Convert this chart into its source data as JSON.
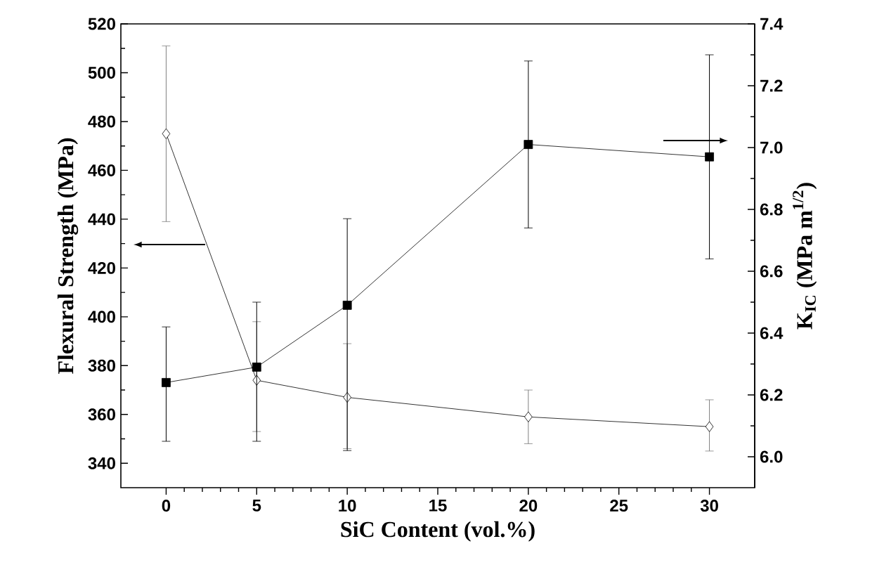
{
  "chart_data": {
    "type": "line",
    "xlabel": "SiC Content (vol.%)",
    "ylabel": "Flexural Strength (MPa)",
    "y2label": "K$_{IC}$ (MPa m$^{1/2}$)",
    "x": [
      0,
      5,
      10,
      20,
      30
    ],
    "series": [
      {
        "color": "#000000",
        "marker": "diamond",
        "values": [
          475,
          374,
          367,
          359,
          355
        ],
        "errors": [
          [
            439,
            511
          ],
          [
            353,
            398
          ],
          [
            346,
            389
          ],
          [
            348,
            370
          ],
          [
            345,
            366
          ]
        ]
      },
      {
        "color": "#000000",
        "marker": "square",
        "axis": "y2",
        "values": [
          6.24,
          6.29,
          6.49,
          7.01,
          6.97
        ],
        "errors": [
          [
            6.05,
            6.42
          ],
          [
            6.05,
            6.5
          ],
          [
            6.02,
            6.77
          ],
          [
            6.74,
            7.28
          ],
          [
            6.64,
            7.3
          ]
        ]
      }
    ],
    "xlim": [
      -2.5,
      32.5
    ],
    "xticks": [
      0,
      5,
      10,
      15,
      20,
      25,
      30
    ],
    "ylim": [
      330,
      520
    ],
    "yticks": [
      340,
      360,
      380,
      400,
      420,
      440,
      460,
      480,
      500,
      520
    ],
    "y2lim": [
      5.9,
      7.4
    ],
    "y2ticks": [
      {
        "value": 6.0,
        "label": "6.0"
      },
      {
        "value": 6.2,
        "label": "6.2"
      },
      {
        "value": 6.4,
        "label": "6.4"
      },
      {
        "value": 6.6,
        "label": "6.6"
      },
      {
        "value": 6.8,
        "label": "6.8"
      },
      {
        "value": 7.0,
        "label": "7.0"
      },
      {
        "value": 7.2,
        "label": "7.2"
      },
      {
        "value": 7.4,
        "label": "7.4"
      }
    ],
    "grid": false
  }
}
